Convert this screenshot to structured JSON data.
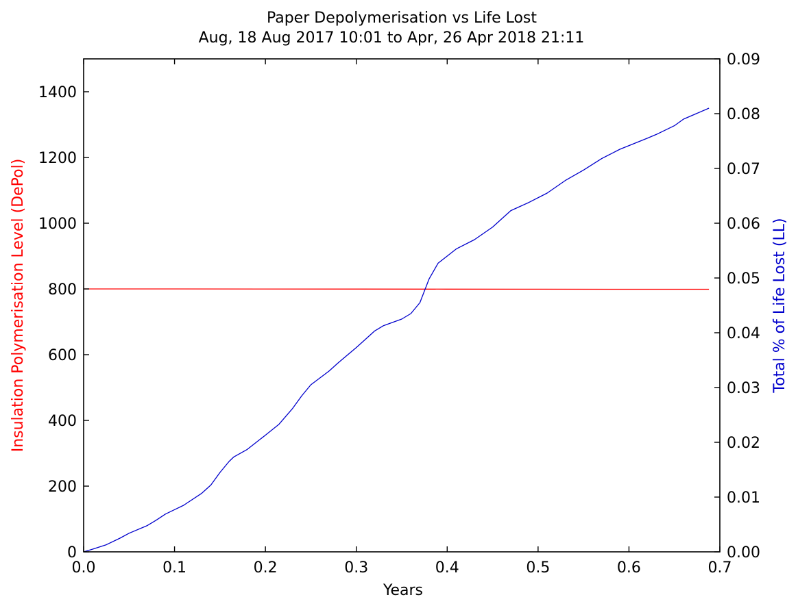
{
  "chart_data": {
    "type": "line",
    "title": "Paper Depolymerisation vs Life Lost",
    "subtitle": "Aug, 18 Aug 2017 10:01 to Apr, 26 Apr 2018 21:11",
    "xlabel": "Years",
    "ylabel_left": "Insulation Polymerisation Level (DePol)",
    "ylabel_right": "Total % of Life Lost (LL)",
    "xlim": [
      0.0,
      0.7
    ],
    "ylim_left": [
      0,
      1500
    ],
    "ylim_right": [
      0.0,
      0.09
    ],
    "x_ticks": [
      "0.0",
      "0.1",
      "0.2",
      "0.3",
      "0.4",
      "0.5",
      "0.6",
      "0.7"
    ],
    "y_ticks_left": [
      "0",
      "200",
      "400",
      "600",
      "800",
      "1000",
      "1200",
      "1400"
    ],
    "y_ticks_right": [
      "0.00",
      "0.01",
      "0.02",
      "0.03",
      "0.04",
      "0.05",
      "0.06",
      "0.07",
      "0.08",
      "0.09"
    ],
    "grid": false,
    "colors": {
      "left_axis": "#ff0000",
      "right_axis": "#0000cc"
    },
    "series": [
      {
        "axis": "left",
        "color": "#ff0000",
        "x": [
          0.0,
          0.1,
          0.2,
          0.3,
          0.4,
          0.5,
          0.6,
          0.688
        ],
        "y": [
          800,
          800,
          799.8,
          799.6,
          799.4,
          799.2,
          799.0,
          798.9
        ]
      },
      {
        "axis": "right",
        "color": "#0000cc",
        "x": [
          0.0,
          0.01,
          0.025,
          0.04,
          0.05,
          0.07,
          0.08,
          0.09,
          0.11,
          0.13,
          0.14,
          0.15,
          0.16,
          0.165,
          0.18,
          0.2,
          0.215,
          0.23,
          0.24,
          0.25,
          0.27,
          0.28,
          0.3,
          0.31,
          0.32,
          0.33,
          0.35,
          0.36,
          0.37,
          0.38,
          0.39,
          0.4,
          0.41,
          0.43,
          0.45,
          0.46,
          0.47,
          0.49,
          0.51,
          0.53,
          0.55,
          0.57,
          0.59,
          0.62,
          0.63,
          0.65,
          0.66,
          0.688
        ],
        "y": [
          0.0,
          0.0005,
          0.0013,
          0.0025,
          0.0034,
          0.0048,
          0.0058,
          0.0069,
          0.0085,
          0.0107,
          0.0122,
          0.0145,
          0.0165,
          0.0173,
          0.0187,
          0.0213,
          0.0233,
          0.0262,
          0.0285,
          0.0305,
          0.033,
          0.0345,
          0.0373,
          0.0388,
          0.0403,
          0.0413,
          0.0425,
          0.0435,
          0.0455,
          0.0498,
          0.0527,
          0.054,
          0.0553,
          0.057,
          0.0593,
          0.0608,
          0.0623,
          0.0638,
          0.0655,
          0.0678,
          0.0697,
          0.0718,
          0.0735,
          0.0755,
          0.0762,
          0.0778,
          0.079,
          0.081
        ]
      }
    ]
  }
}
